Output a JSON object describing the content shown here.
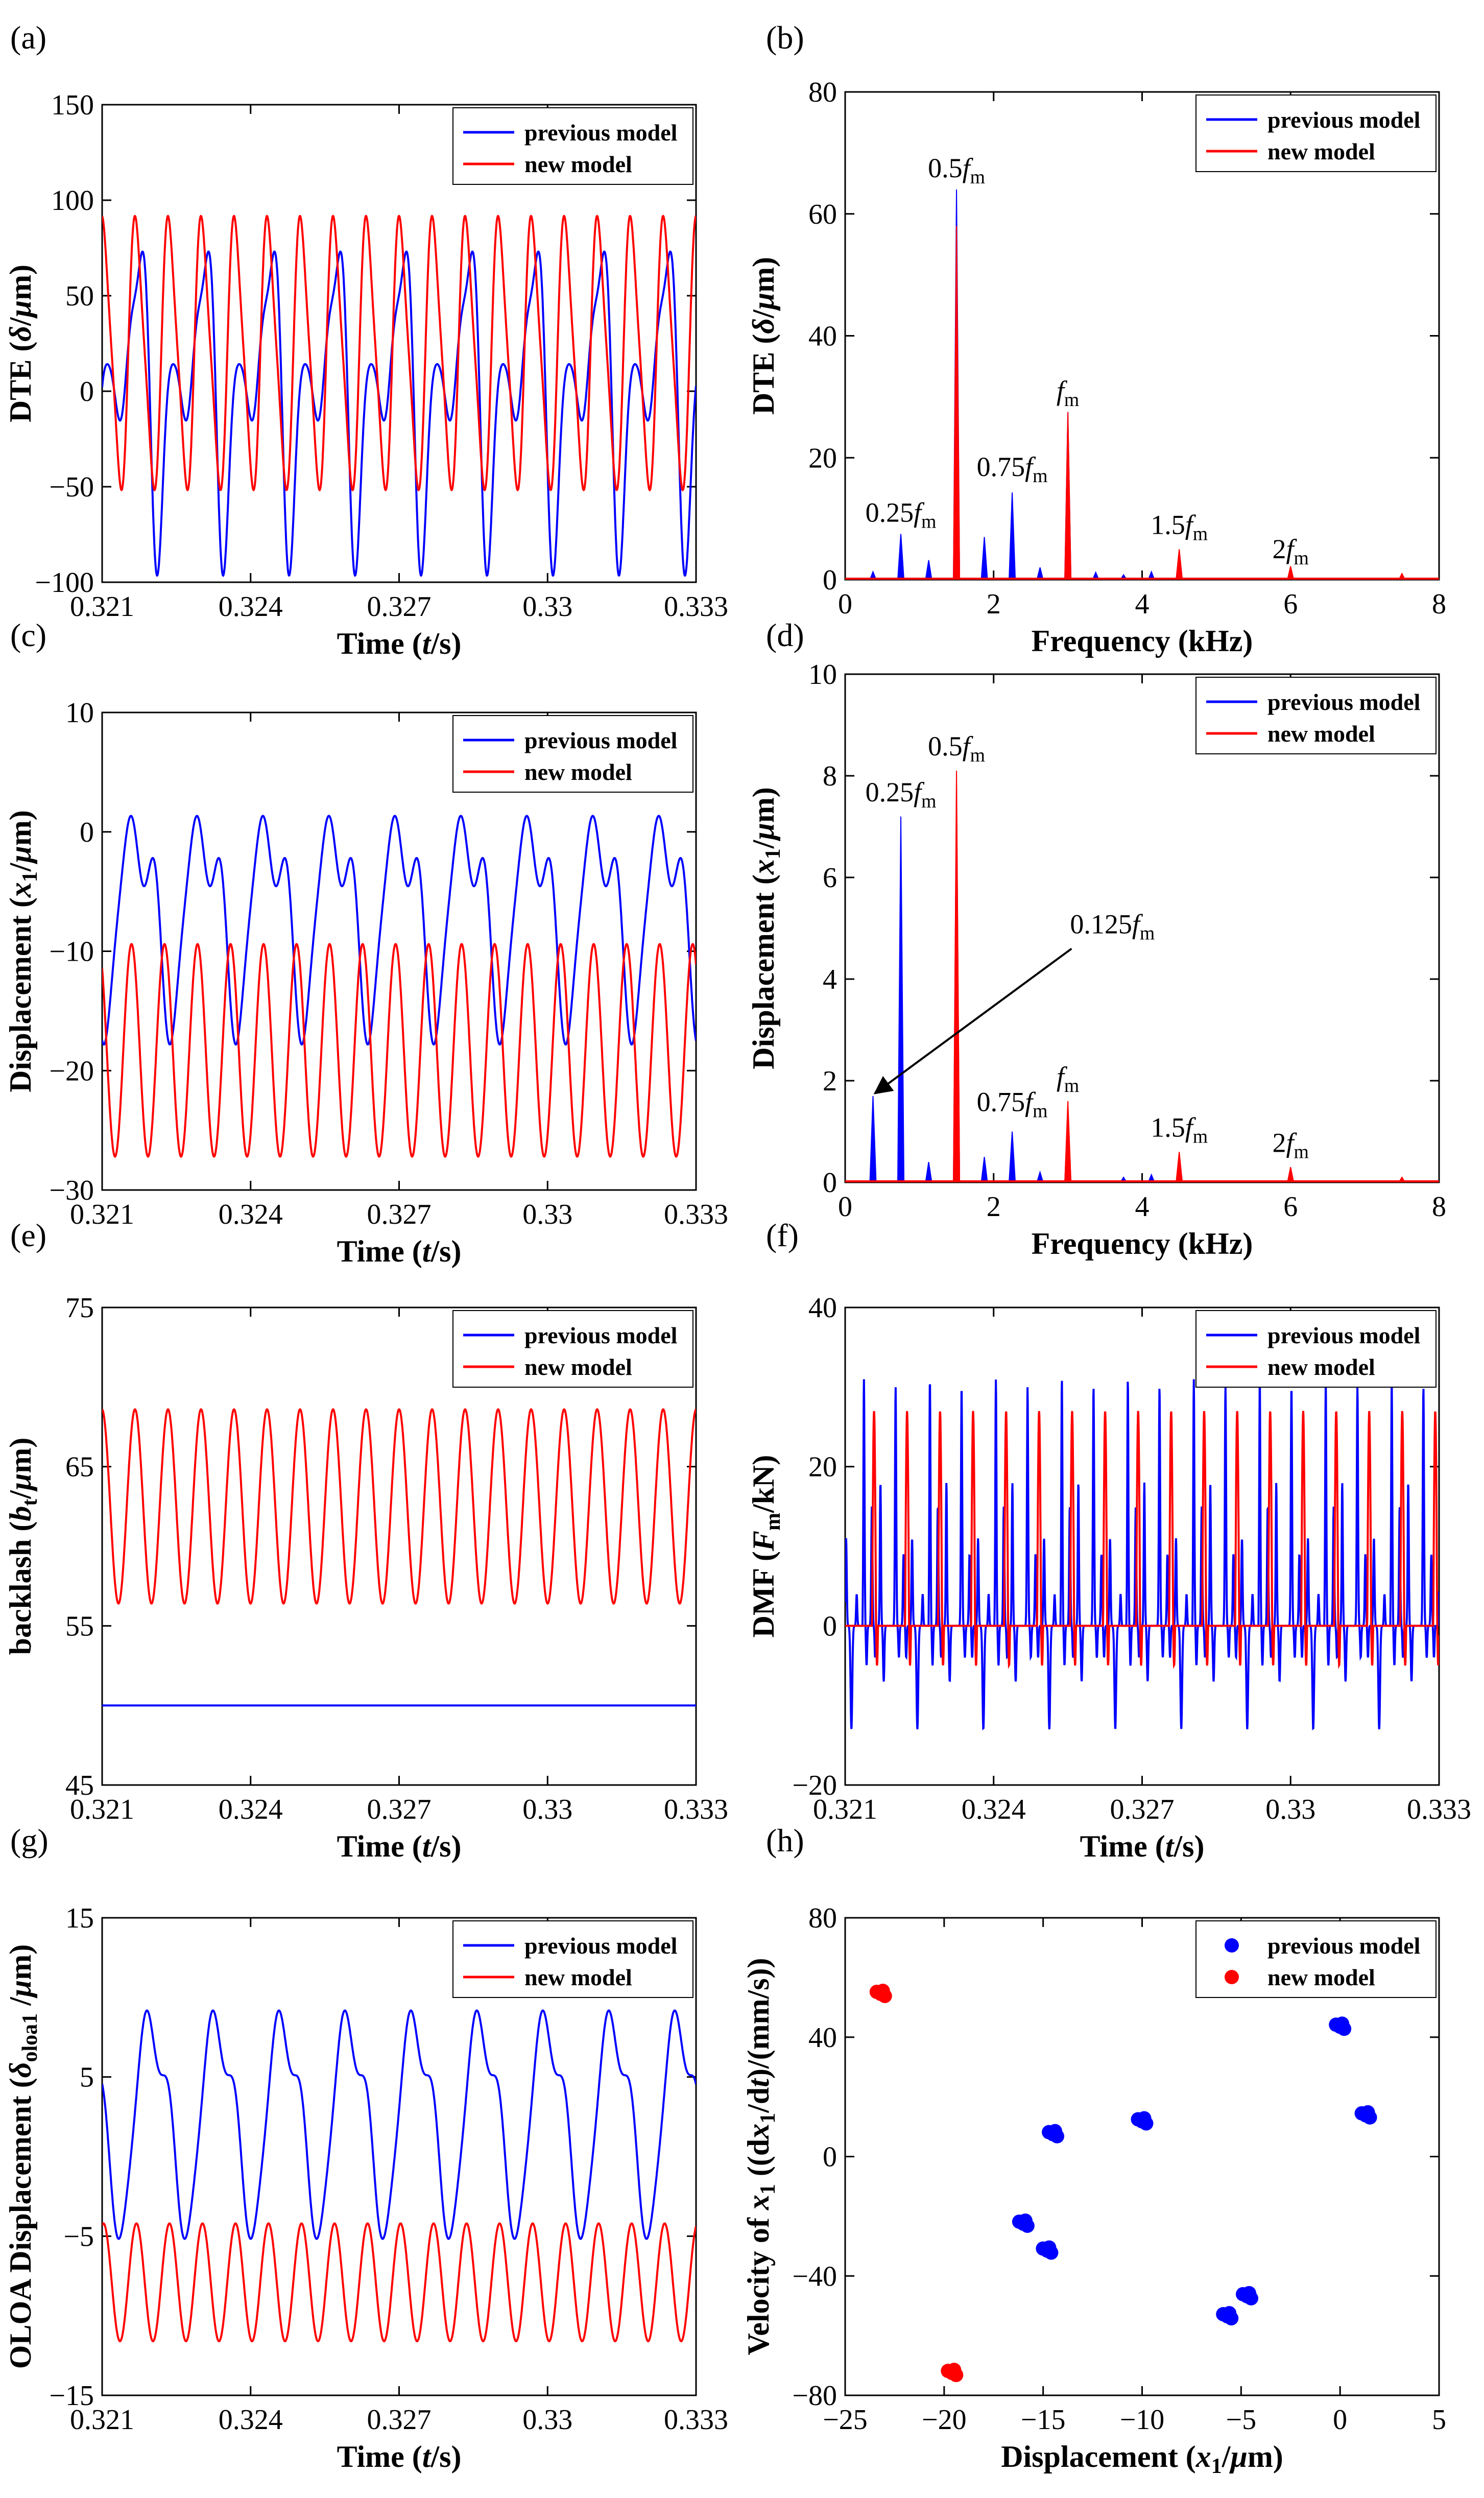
{
  "panels": [
    {
      "id": "a",
      "label": "(a)",
      "type": "line",
      "xlabel": "Time (t/s)",
      "ylabel": "DTE (δ/μm)",
      "xlim": [
        0.321,
        0.333
      ],
      "ylim": [
        -100,
        150
      ],
      "xticks": [
        0.321,
        0.324,
        0.327,
        0.33,
        0.333
      ],
      "xtick_labels": [
        "0.321",
        "0.324",
        "0.327",
        "0.33",
        "0.333"
      ],
      "yticks": [
        -100,
        -50,
        0,
        50,
        100,
        150
      ],
      "ytick_labels": [
        "−100",
        "−50",
        "0",
        "50",
        "100",
        "150"
      ],
      "legend": [
        "previous model",
        "new model"
      ],
      "series": [
        {
          "name": "previous model",
          "color": "#0000ff",
          "fn": {
            "kind": "sum",
            "period": 0.001333,
            "phase": 0.00035,
            "terms": [
              [
                1,
                42,
                0
              ],
              [
                2,
                46,
                -1.57
              ],
              [
                3,
                16,
                2.2
              ],
              [
                4,
                8,
                0.6
              ]
            ],
            "offset": 2
          }
        },
        {
          "name": "new model",
          "color": "#ff0000",
          "fn": {
            "kind": "sum",
            "period": 0.000667,
            "phase": 0.0002,
            "terms": [
              [
                1,
                68,
                0
              ],
              [
                2,
                12,
                1.57
              ]
            ],
            "offset": 20
          }
        }
      ]
    },
    {
      "id": "b",
      "label": "(b)",
      "type": "spectrum",
      "xlabel": "Frequency (kHz)",
      "ylabel": "DTE (δ/μm)",
      "xlim": [
        0,
        8
      ],
      "ylim": [
        0,
        80
      ],
      "xticks": [
        0,
        2,
        4,
        6,
        8
      ],
      "xtick_labels": [
        "0",
        "2",
        "4",
        "6",
        "8"
      ],
      "yticks": [
        0,
        20,
        40,
        60,
        80
      ],
      "ytick_labels": [
        "0",
        "20",
        "40",
        "60",
        "80"
      ],
      "legend": [
        "previous model",
        "new model"
      ],
      "series": [
        {
          "name": "previous model",
          "color": "#0000ff",
          "x": [
            0.375,
            0.75,
            1.125,
            1.5,
            1.875,
            2.25,
            2.625,
            3.0,
            3.375,
            3.75,
            4.125,
            4.5,
            6.0,
            7.5
          ],
          "y": [
            1.3,
            7.5,
            3.2,
            64,
            7.0,
            14.3,
            2.0,
            27.5,
            1.2,
            0.8,
            1.3,
            4.8,
            2.0,
            0.8
          ]
        },
        {
          "name": "new model",
          "color": "#ff0000",
          "x": [
            1.5,
            3.0,
            4.5,
            6.0,
            7.5
          ],
          "y": [
            58,
            27.5,
            5.0,
            2.2,
            1.0
          ]
        }
      ],
      "annotations": [
        {
          "base": "0.25",
          "sub": "m",
          "x": 0.75,
          "y": 9.5
        },
        {
          "base": "0.5",
          "sub": "m",
          "x": 1.5,
          "y": 66
        },
        {
          "base": "0.75",
          "sub": "m",
          "x": 2.25,
          "y": 17
        },
        {
          "base": "",
          "sub": "m",
          "x": 3.0,
          "y": 29.5
        },
        {
          "base": "1.5",
          "sub": "m",
          "x": 4.5,
          "y": 7.5
        },
        {
          "base": "2",
          "sub": "m",
          "x": 6.0,
          "y": 3.5
        }
      ]
    },
    {
      "id": "c",
      "label": "(c)",
      "type": "line",
      "xlabel": "Time (t/s)",
      "ylabel": "Displacement (x1/μm)",
      "xlim": [
        0.321,
        0.333
      ],
      "ylim": [
        -30,
        10
      ],
      "xticks": [
        0.321,
        0.324,
        0.327,
        0.33,
        0.333
      ],
      "xtick_labels": [
        "0.321",
        "0.324",
        "0.327",
        "0.33",
        "0.333"
      ],
      "yticks": [
        -30,
        -20,
        -10,
        0,
        10
      ],
      "ytick_labels": [
        "−30",
        "−20",
        "−10",
        "0",
        "10"
      ],
      "legend": [
        "previous model",
        "new model"
      ],
      "series": [
        {
          "name": "previous model",
          "color": "#0000ff",
          "fn": {
            "kind": "sum",
            "period": 0.001333,
            "phase": 0.00045,
            "terms": [
              [
                1,
                7.5,
                0
              ],
              [
                2,
                3.5,
                2.6
              ],
              [
                3,
                1.5,
                1.0
              ]
            ],
            "offset": -6.5
          }
        },
        {
          "name": "new model",
          "color": "#ff0000",
          "fn": {
            "kind": "sum",
            "period": 0.000667,
            "phase": 0.0001,
            "terms": [
              [
                1,
                8.9,
                0
              ]
            ],
            "offset": -18.3
          }
        }
      ]
    },
    {
      "id": "d",
      "label": "(d)",
      "type": "spectrum",
      "xlabel": "Frequency (kHz)",
      "ylabel": "Displacement (x1/μm)",
      "xlim": [
        0,
        8
      ],
      "ylim": [
        0,
        10
      ],
      "xticks": [
        0,
        2,
        4,
        6,
        8
      ],
      "xtick_labels": [
        "0",
        "2",
        "4",
        "6",
        "8"
      ],
      "yticks": [
        0,
        2,
        4,
        6,
        8,
        10
      ],
      "ytick_labels": [
        "0",
        "2",
        "4",
        "6",
        "8",
        "10"
      ],
      "legend": [
        "previous model",
        "new model"
      ],
      "series": [
        {
          "name": "previous model",
          "color": "#0000ff",
          "x": [
            0.375,
            0.75,
            1.125,
            1.5,
            1.875,
            2.25,
            2.625,
            3.0,
            3.75,
            4.125,
            4.5,
            6.0
          ],
          "y": [
            1.7,
            7.2,
            0.4,
            7.8,
            0.5,
            1.0,
            0.2,
            1.4,
            0.1,
            0.15,
            0.3,
            0.1
          ]
        },
        {
          "name": "new model",
          "color": "#ff0000",
          "x": [
            1.5,
            3.0,
            4.5,
            6.0,
            7.5
          ],
          "y": [
            8.1,
            1.6,
            0.6,
            0.3,
            0.1
          ]
        }
      ],
      "annotations": [
        {
          "base": "0.25",
          "sub": "m",
          "x": 0.75,
          "y": 7.5
        },
        {
          "base": "0.5",
          "sub": "m",
          "x": 1.5,
          "y": 8.4
        },
        {
          "base": "0.75",
          "sub": "m",
          "x": 2.25,
          "y": 1.4
        },
        {
          "base": "",
          "sub": "m",
          "x": 3.0,
          "y": 1.9
        },
        {
          "base": "1.5",
          "sub": "m",
          "x": 4.5,
          "y": 0.9
        },
        {
          "base": "2",
          "sub": "m",
          "x": 6.0,
          "y": 0.6
        },
        {
          "base": "0.125",
          "sub": "m",
          "x": 3.6,
          "y": 4.9,
          "arrow_to": [
            0.4,
            1.75
          ]
        }
      ]
    },
    {
      "id": "e",
      "label": "(e)",
      "type": "line",
      "xlabel": "Time (t/s)",
      "ylabel": "backlash (bt/μm)",
      "xlim": [
        0.321,
        0.333
      ],
      "ylim": [
        45,
        75
      ],
      "xticks": [
        0.321,
        0.324,
        0.327,
        0.33,
        0.333
      ],
      "xtick_labels": [
        "0.321",
        "0.324",
        "0.327",
        "0.33",
        "0.333"
      ],
      "yticks": [
        45,
        55,
        65,
        75
      ],
      "ytick_labels": [
        "45",
        "55",
        "65",
        "75"
      ],
      "legend": [
        "previous model",
        "new model"
      ],
      "series": [
        {
          "name": "previous model",
          "color": "#0000ff",
          "fn": {
            "kind": "sum",
            "period": 0.001,
            "phase": 0,
            "terms": [],
            "offset": 50
          }
        },
        {
          "name": "new model",
          "color": "#ff0000",
          "fn": {
            "kind": "sum",
            "period": 0.000667,
            "phase": 0.00017,
            "terms": [
              [
                1,
                6.1,
                0
              ]
            ],
            "offset": 62.5
          }
        }
      ]
    },
    {
      "id": "f",
      "label": "(f)",
      "type": "line",
      "xlabel": "Time (t/s)",
      "ylabel": "DMF (Fm/kN)",
      "xlim": [
        0.321,
        0.333
      ],
      "ylim": [
        -20,
        40
      ],
      "xticks": [
        0.321,
        0.324,
        0.327,
        0.33,
        0.333
      ],
      "xtick_labels": [
        "0.321",
        "0.324",
        "0.327",
        "0.33",
        "0.333"
      ],
      "yticks": [
        -20,
        0,
        20,
        40
      ],
      "ytick_labels": [
        "−20",
        "0",
        "20",
        "40"
      ],
      "legend": [
        "previous model",
        "new model"
      ],
      "series": [
        {
          "name": "previous model",
          "color": "#0000ff",
          "fn": {
            "kind": "impact",
            "period": 0.001333,
            "phase": 0.0001
          }
        },
        {
          "name": "new model",
          "color": "#ff0000",
          "fn": {
            "kind": "pulse",
            "period": 0.000667,
            "phase": 5e-05,
            "amp": 27,
            "dip": -5
          }
        }
      ]
    },
    {
      "id": "g",
      "label": "(g)",
      "type": "line",
      "xlabel": "Time (t/s)",
      "ylabel": "OLOA Displacement (δoloa1/μm)",
      "xlim": [
        0.321,
        0.333
      ],
      "ylim": [
        -15,
        15
      ],
      "xticks": [
        0.321,
        0.324,
        0.327,
        0.33,
        0.333
      ],
      "xtick_labels": [
        "0.321",
        "0.324",
        "0.327",
        "0.33",
        "0.333"
      ],
      "yticks": [
        -15,
        -5,
        5,
        15
      ],
      "ytick_labels": [
        "−15",
        "−5",
        "5",
        "15"
      ],
      "legend": [
        "previous model",
        "new model"
      ],
      "series": [
        {
          "name": "previous model",
          "color": "#0000ff",
          "fn": {
            "kind": "sum",
            "period": 0.001333,
            "phase": 0.00075,
            "terms": [
              [
                1,
                6.3,
                0
              ],
              [
                2,
                1.6,
                2.4
              ],
              [
                3,
                0.8,
                1.2
              ]
            ],
            "offset": 2.6
          }
        },
        {
          "name": "new model",
          "color": "#ff0000",
          "fn": {
            "kind": "sum",
            "period": 0.000667,
            "phase": 0.0002,
            "terms": [
              [
                1,
                3.7,
                0
              ]
            ],
            "offset": -7.9
          }
        }
      ]
    },
    {
      "id": "h",
      "label": "(h)",
      "type": "scatter",
      "xlabel": "Displacement (x1/μm)",
      "ylabel": "Velocity of x1 ((dx1/dt)/(mm/s))",
      "xlim": [
        -25,
        5
      ],
      "ylim": [
        -80,
        80
      ],
      "xticks": [
        -25,
        -20,
        -15,
        -10,
        -5,
        0,
        5
      ],
      "xtick_labels": [
        "−25",
        "−20",
        "−15",
        "−10",
        "−5",
        "0",
        "5"
      ],
      "yticks": [
        -80,
        -40,
        0,
        40,
        80
      ],
      "ytick_labels": [
        "−80",
        "−40",
        "0",
        "40",
        "80"
      ],
      "legend": [
        "previous model",
        "new model"
      ],
      "series": [
        {
          "name": "previous model",
          "color": "#0000ff",
          "points": [
            [
              0,
              43.5
            ],
            [
              1.3,
              13.8
            ],
            [
              -10,
              11.8
            ],
            [
              -14.5,
              7.5
            ],
            [
              -16,
              -22.5
            ],
            [
              -14.8,
              -31.5
            ],
            [
              -5.7,
              -53.5
            ],
            [
              -4.7,
              -46.8
            ]
          ]
        },
        {
          "name": "new model",
          "color": "#ff0000",
          "points": [
            [
              -23.2,
              54.5
            ],
            [
              -19.6,
              -72.5
            ]
          ]
        }
      ]
    }
  ]
}
